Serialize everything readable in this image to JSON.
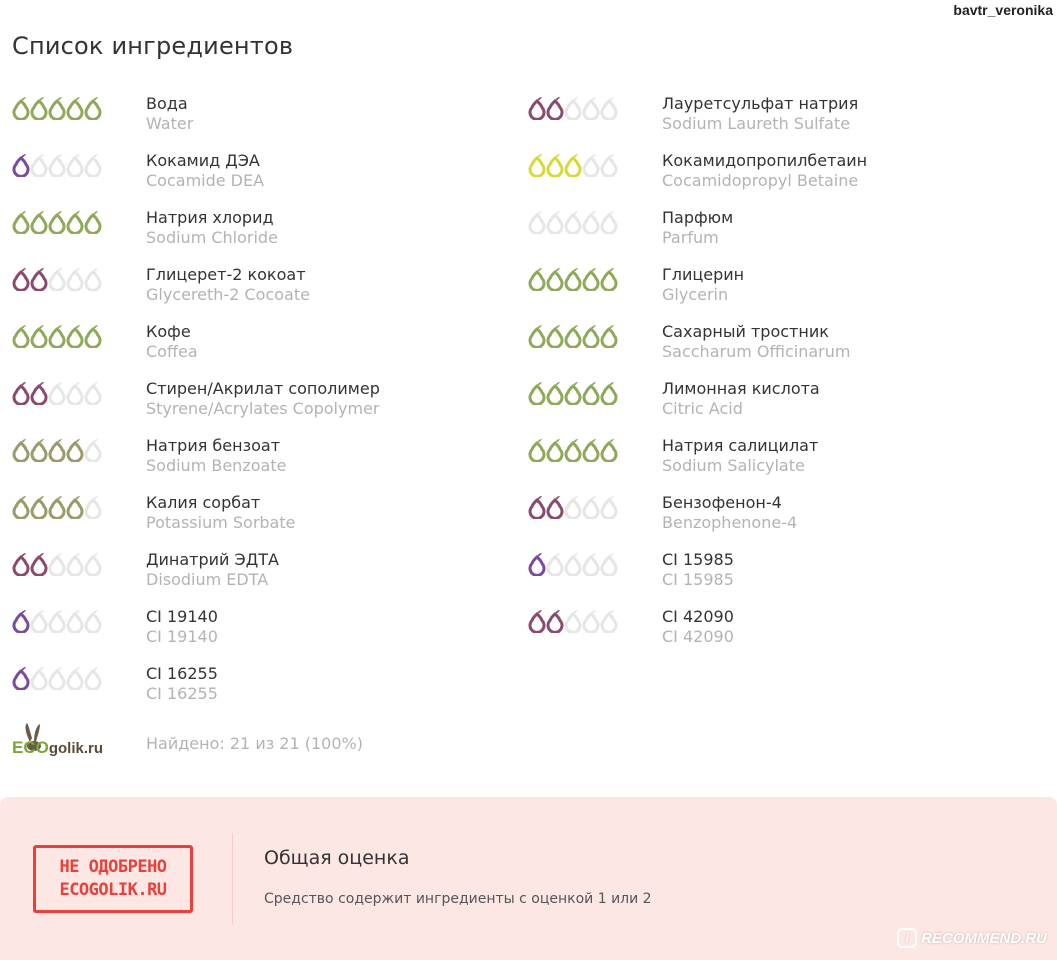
{
  "header": {
    "username": "bavtr_veronika",
    "title": "Список ингредиентов"
  },
  "colors": {
    "green": "#8fa85a",
    "olive": "#9a9a6a",
    "yellow": "#d7d93a",
    "plum": "#8a4a6e",
    "purple": "#7a4aa0",
    "empty": "#e6e6e6"
  },
  "ingredients": [
    {
      "ru": "Вода",
      "en": "Water",
      "rating": 5,
      "color": "green"
    },
    {
      "ru": "Лауретсульфат натрия",
      "en": "Sodium Laureth Sulfate",
      "rating": 2,
      "color": "plum"
    },
    {
      "ru": "Кокамид ДЭА",
      "en": "Cocamide DEA",
      "rating": 1,
      "color": "purple"
    },
    {
      "ru": "Кокамидопропилбетаин",
      "en": "Cocamidopropyl Betaine",
      "rating": 3,
      "color": "yellow"
    },
    {
      "ru": "Натрия хлорид",
      "en": "Sodium Chloride",
      "rating": 5,
      "color": "green"
    },
    {
      "ru": "Парфюм",
      "en": "Parfum",
      "rating": 0,
      "color": "empty"
    },
    {
      "ru": "Глицерет-2 кокоат",
      "en": "Glycereth-2 Cocoate",
      "rating": 2,
      "color": "plum"
    },
    {
      "ru": "Глицерин",
      "en": "Glycerin",
      "rating": 5,
      "color": "green"
    },
    {
      "ru": "Кофе",
      "en": "Coffea",
      "rating": 5,
      "color": "green"
    },
    {
      "ru": "Сахарный тростник",
      "en": "Saccharum Officinarum",
      "rating": 5,
      "color": "green"
    },
    {
      "ru": "Стирен/Акрилат сополимер",
      "en": "Styrene/Acrylates Copolymer",
      "rating": 2,
      "color": "plum"
    },
    {
      "ru": "Лимонная кислота",
      "en": "Citric Acid",
      "rating": 5,
      "color": "green"
    },
    {
      "ru": "Натрия бензоат",
      "en": "Sodium Benzoate",
      "rating": 4,
      "color": "olive"
    },
    {
      "ru": "Натрия салицилат",
      "en": "Sodium Salicylate",
      "rating": 5,
      "color": "green"
    },
    {
      "ru": "Калия сорбат",
      "en": "Potassium Sorbate",
      "rating": 4,
      "color": "olive"
    },
    {
      "ru": "Бензофенон-4",
      "en": "Benzophenone-4",
      "rating": 2,
      "color": "plum"
    },
    {
      "ru": "Динатрий ЭДТА",
      "en": "Disodium EDTA",
      "rating": 2,
      "color": "plum"
    },
    {
      "ru": "CI 15985",
      "en": "CI 15985",
      "rating": 1,
      "color": "purple"
    },
    {
      "ru": "CI 19140",
      "en": "CI 19140",
      "rating": 1,
      "color": "purple"
    },
    {
      "ru": "CI 42090",
      "en": "CI 42090",
      "rating": 2,
      "color": "plum"
    },
    {
      "ru": "CI 16255",
      "en": "CI 16255",
      "rating": 1,
      "color": "purple"
    }
  ],
  "footer": {
    "logo_text_eco": "ECO",
    "logo_text_rest": "golik.ru",
    "found": "Найдено: 21 из 21 (100%)"
  },
  "verdict": {
    "stamp_line1": "НЕ ОДОБРЕНО",
    "stamp_line2": "ECOGOLIK.RU",
    "title": "Общая оценка",
    "description": "Средство содержит ингредиенты с оценкой 1 или 2"
  },
  "watermark": {
    "badge": "i",
    "text": "RECOMMEND.RU"
  }
}
